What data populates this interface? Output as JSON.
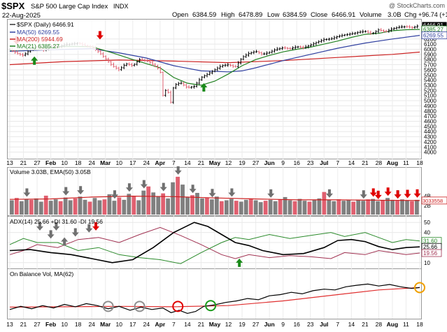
{
  "header": {
    "ticker": "$SPX",
    "name": "S&P 500 Large Cap Index",
    "exchange": "INDX",
    "date": "22-Aug-2025",
    "source": "@ StockCharts.com",
    "quote": {
      "open_label": "Open",
      "open": "6384.59",
      "high_label": "High",
      "high": "6478.89",
      "low_label": "Low",
      "low": "6384.59",
      "close_label": "Close",
      "close": "6466.91",
      "volume_label": "Volume",
      "volume": "3.0B",
      "chg_label": "Chg",
      "chg": "+96.74 (+1.52%)"
    }
  },
  "colors": {
    "price": "#000000",
    "ma50": "#3040a0",
    "ma200": "#cc2020",
    "ma21": "#208020",
    "up_vol": "#808080",
    "down_vol": "#e06070",
    "adx": "#000000",
    "pdi": "#2a8a2a",
    "mdi": "#a03050",
    "obv": "#000000",
    "obv_ma": "#e03030",
    "arrow_gray": "#707070",
    "arrow_red": "#e00000",
    "arrow_green": "#1a8a1a",
    "circle_gray": "#909090",
    "circle_red": "#e00000",
    "circle_green": "#1a9a1a",
    "circle_orange": "#f0a000"
  },
  "chart_data": [
    {
      "type": "line",
      "panel": "price",
      "legend": [
        {
          "text": "$SPX (Daily) 6466.91",
          "key": "price"
        },
        {
          "text": "MA(50) 6269.55",
          "key": "ma50"
        },
        {
          "text": "MA(200) 5944.69",
          "key": "ma200"
        },
        {
          "text": "MA(21) 6385.27",
          "key": "ma21"
        }
      ],
      "ylim": [
        3900,
        6550
      ],
      "y_ticks": [
        4000,
        4100,
        4200,
        4300,
        4400,
        4500,
        4600,
        4700,
        4800,
        4900,
        5000,
        5100,
        5200,
        5300,
        5400,
        5500,
        5600,
        5700,
        5800,
        5900,
        6000,
        6100,
        6200
      ],
      "value_tags": [
        {
          "label": "6466.91",
          "value": 6466.91,
          "style": "close"
        },
        {
          "label": "6385.27",
          "value": 6385.27,
          "style": "ma21"
        },
        {
          "label": "6269.55",
          "value": 6269.55,
          "style": "ma50"
        }
      ],
      "x_dates": [
        "13",
        "21",
        "27",
        "Feb",
        "10",
        "18",
        "24",
        "Mar",
        "10",
        "17",
        "24",
        "Apr",
        "7",
        "14",
        "21",
        "May",
        "12",
        "19",
        "27",
        "Jun",
        "9",
        "16",
        "23",
        "Jul",
        "7",
        "14",
        "21",
        "28",
        "Aug",
        "11",
        "18"
      ],
      "price_points": [
        [
          0,
          6000
        ],
        [
          5,
          5920
        ],
        [
          10,
          5880
        ],
        [
          15,
          5990
        ],
        [
          20,
          6050
        ],
        [
          25,
          5980
        ],
        [
          30,
          6060
        ],
        [
          35,
          6040
        ],
        [
          40,
          6090
        ],
        [
          45,
          6100
        ],
        [
          50,
          6120
        ],
        [
          55,
          6070
        ],
        [
          60,
          6040
        ],
        [
          65,
          5950
        ],
        [
          70,
          5820
        ],
        [
          75,
          5680
        ],
        [
          80,
          5600
        ],
        [
          85,
          5720
        ],
        [
          90,
          5680
        ],
        [
          95,
          5800
        ],
        [
          100,
          5780
        ],
        [
          105,
          5700
        ],
        [
          110,
          5600
        ],
        [
          112,
          5100
        ],
        [
          115,
          5250
        ],
        [
          118,
          4950
        ],
        [
          120,
          5300
        ],
        [
          125,
          5350
        ],
        [
          130,
          5250
        ],
        [
          135,
          5280
        ],
        [
          140,
          5450
        ],
        [
          145,
          5520
        ],
        [
          150,
          5600
        ],
        [
          155,
          5680
        ],
        [
          160,
          5700
        ],
        [
          165,
          5650
        ],
        [
          170,
          5840
        ],
        [
          175,
          5920
        ],
        [
          180,
          5960
        ],
        [
          185,
          5900
        ],
        [
          190,
          5940
        ],
        [
          195,
          6000
        ],
        [
          200,
          6030
        ],
        [
          205,
          6010
        ],
        [
          210,
          6050
        ],
        [
          215,
          6030
        ],
        [
          220,
          6080
        ],
        [
          225,
          6140
        ],
        [
          230,
          6190
        ],
        [
          235,
          6200
        ],
        [
          240,
          6250
        ],
        [
          245,
          6280
        ],
        [
          250,
          6300
        ],
        [
          255,
          6330
        ],
        [
          260,
          6350
        ],
        [
          265,
          6300
        ],
        [
          270,
          6380
        ],
        [
          275,
          6340
        ],
        [
          280,
          6400
        ],
        [
          285,
          6430
        ],
        [
          290,
          6440
        ],
        [
          295,
          6420
        ],
        [
          300,
          6466.91
        ]
      ],
      "ma21_points": [
        [
          0,
          5980
        ],
        [
          20,
          5995
        ],
        [
          40,
          6060
        ],
        [
          60,
          6050
        ],
        [
          75,
          5930
        ],
        [
          90,
          5800
        ],
        [
          100,
          5720
        ],
        [
          110,
          5640
        ],
        [
          120,
          5450
        ],
        [
          130,
          5340
        ],
        [
          140,
          5300
        ],
        [
          150,
          5380
        ],
        [
          160,
          5520
        ],
        [
          170,
          5680
        ],
        [
          180,
          5800
        ],
        [
          190,
          5880
        ],
        [
          200,
          5950
        ],
        [
          210,
          6000
        ],
        [
          220,
          6040
        ],
        [
          230,
          6100
        ],
        [
          240,
          6160
        ],
        [
          250,
          6230
        ],
        [
          260,
          6290
        ],
        [
          270,
          6310
        ],
        [
          280,
          6360
        ],
        [
          290,
          6380
        ],
        [
          300,
          6385.27
        ]
      ],
      "ma50_points": [
        [
          0,
          5960
        ],
        [
          30,
          5990
        ],
        [
          60,
          6010
        ],
        [
          80,
          5930
        ],
        [
          100,
          5830
        ],
        [
          120,
          5680
        ],
        [
          140,
          5580
        ],
        [
          160,
          5560
        ],
        [
          170,
          5580
        ],
        [
          180,
          5640
        ],
        [
          200,
          5780
        ],
        [
          220,
          5900
        ],
        [
          240,
          6020
        ],
        [
          260,
          6120
        ],
        [
          280,
          6200
        ],
        [
          300,
          6269.55
        ]
      ],
      "ma200_points": [
        [
          0,
          5700
        ],
        [
          40,
          5760
        ],
        [
          80,
          5790
        ],
        [
          120,
          5770
        ],
        [
          160,
          5740
        ],
        [
          200,
          5780
        ],
        [
          240,
          5840
        ],
        [
          280,
          5900
        ],
        [
          300,
          5944.69
        ]
      ],
      "arrows": [
        {
          "x": 5,
          "value": 6130,
          "dir": "down",
          "color": "red"
        },
        {
          "x": 18,
          "value": 5820,
          "dir": "up",
          "color": "green"
        },
        {
          "x": 66,
          "value": 6230,
          "dir": "down",
          "color": "red"
        },
        {
          "x": 142,
          "value": 5300,
          "dir": "up",
          "color": "green"
        }
      ]
    },
    {
      "type": "bar",
      "panel": "volume",
      "legend": "Volume 3.03B, EMA(50) 3.05B",
      "y_ticks_labels": [
        "4B",
        "3B",
        "2B"
      ],
      "y_ticks": [
        4,
        3,
        2
      ],
      "ylim": [
        0,
        10
      ],
      "value_tag": "3033558",
      "volumes": [
        3.1,
        3.6,
        2.9,
        3.4,
        3.2,
        3.5,
        2.8,
        4.1,
        3.0,
        3.3,
        2.9,
        3.7,
        3.1,
        3.5,
        3.9,
        3.2,
        2.8,
        3.6,
        3.1,
        3.3,
        4.4,
        3.0,
        3.7,
        3.2,
        4.5,
        3.9,
        3.1,
        5.2,
        6.1,
        4.8,
        3.9,
        4.6,
        3.5,
        7.0,
        8.2,
        6.5,
        3.8,
        4.2,
        4.7,
        3.5,
        3.6,
        3.3,
        3.9,
        2.9,
        3.1,
        3.4,
        3.0,
        2.8,
        3.2,
        3.5,
        3.1,
        2.7,
        3.0,
        3.2,
        2.9,
        3.3,
        3.8,
        3.1,
        2.9,
        3.4,
        3.0,
        2.8,
        3.1,
        3.5,
        4.9,
        3.2,
        2.9,
        3.3,
        3.0,
        3.2,
        2.8,
        3.1,
        3.0,
        3.3,
        3.4,
        2.9,
        3.1,
        3.6,
        3.2,
        3.0,
        3.3,
        3.1,
        2.9,
        3.2
      ],
      "ema_points": [
        [
          0,
          3.3
        ],
        [
          30,
          3.4
        ],
        [
          60,
          3.8
        ],
        [
          90,
          4.0
        ],
        [
          120,
          3.9
        ],
        [
          150,
          3.6
        ],
        [
          180,
          3.4
        ],
        [
          210,
          3.2
        ],
        [
          240,
          3.2
        ],
        [
          270,
          3.1
        ],
        [
          300,
          3.05
        ]
      ],
      "arrows_gray": [
        3,
        11,
        14,
        21,
        24,
        27,
        31,
        34,
        37,
        41,
        45,
        53,
        65,
        72,
        79,
        92,
        101
      ],
      "arrows_red": [
        74,
        75,
        77,
        79,
        81,
        83
      ]
    },
    {
      "type": "line",
      "panel": "adx",
      "legend": "ADX(14) 25.66 +DI 31.60 -DI 19.56",
      "y_ticks": [
        10,
        20,
        30,
        40,
        50
      ],
      "ylim": [
        5,
        55
      ],
      "value_tags": [
        {
          "label": "31.60",
          "value": 31.6,
          "style": "pdi"
        },
        {
          "label": "25.66",
          "value": 25.66,
          "style": "adx"
        },
        {
          "label": "19.56",
          "value": 19.56,
          "style": "mdi"
        }
      ],
      "adx_points": [
        [
          0,
          22
        ],
        [
          15,
          23
        ],
        [
          30,
          20
        ],
        [
          45,
          18
        ],
        [
          60,
          14
        ],
        [
          75,
          10
        ],
        [
          90,
          13
        ],
        [
          105,
          25
        ],
        [
          120,
          40
        ],
        [
          135,
          50
        ],
        [
          145,
          46
        ],
        [
          155,
          38
        ],
        [
          165,
          30
        ],
        [
          175,
          27
        ],
        [
          185,
          22
        ],
        [
          200,
          18
        ],
        [
          215,
          19
        ],
        [
          230,
          25
        ],
        [
          240,
          32
        ],
        [
          250,
          33
        ],
        [
          260,
          31
        ],
        [
          270,
          26
        ],
        [
          280,
          23
        ],
        [
          290,
          25
        ],
        [
          300,
          25.66
        ]
      ],
      "pdi_points": [
        [
          0,
          28
        ],
        [
          10,
          34
        ],
        [
          20,
          30
        ],
        [
          35,
          30
        ],
        [
          50,
          22
        ],
        [
          65,
          25
        ],
        [
          80,
          18
        ],
        [
          95,
          15
        ],
        [
          110,
          13
        ],
        [
          125,
          9
        ],
        [
          140,
          20
        ],
        [
          155,
          30
        ],
        [
          165,
          35
        ],
        [
          175,
          33
        ],
        [
          190,
          38
        ],
        [
          205,
          34
        ],
        [
          220,
          37
        ],
        [
          235,
          40
        ],
        [
          245,
          36
        ],
        [
          260,
          40
        ],
        [
          270,
          35
        ],
        [
          280,
          30
        ],
        [
          290,
          33
        ],
        [
          300,
          31.6
        ]
      ],
      "mdi_points": [
        [
          0,
          18
        ],
        [
          10,
          22
        ],
        [
          20,
          28
        ],
        [
          35,
          25
        ],
        [
          50,
          33
        ],
        [
          65,
          35
        ],
        [
          80,
          30
        ],
        [
          95,
          38
        ],
        [
          110,
          45
        ],
        [
          125,
          37
        ],
        [
          140,
          28
        ],
        [
          155,
          18
        ],
        [
          165,
          14
        ],
        [
          175,
          18
        ],
        [
          190,
          15
        ],
        [
          205,
          17
        ],
        [
          220,
          16
        ],
        [
          235,
          14
        ],
        [
          245,
          20
        ],
        [
          260,
          18
        ],
        [
          270,
          22
        ],
        [
          280,
          20
        ],
        [
          290,
          18
        ],
        [
          300,
          19.56
        ]
      ],
      "arrows": [
        {
          "x": 22,
          "value": 44,
          "dir": "down",
          "color": "gray"
        },
        {
          "x": 34,
          "value": 44,
          "dir": "down",
          "color": "gray"
        },
        {
          "x": 30,
          "value": 36,
          "dir": "down",
          "color": "gray"
        },
        {
          "x": 40,
          "value": 33,
          "dir": "up",
          "color": "gray"
        },
        {
          "x": 48,
          "value": 38,
          "dir": "down",
          "color": "gray"
        },
        {
          "x": 58,
          "value": 42,
          "dir": "down",
          "color": "gray"
        },
        {
          "x": 63,
          "value": 44,
          "dir": "down",
          "color": "red"
        },
        {
          "x": 168,
          "value": 12,
          "dir": "up",
          "color": "green"
        }
      ]
    },
    {
      "type": "line",
      "panel": "obv",
      "legend": "On Balance Vol, MA(62)",
      "obv_points": [
        [
          0,
          20
        ],
        [
          8,
          28
        ],
        [
          16,
          22
        ],
        [
          24,
          30
        ],
        [
          32,
          24
        ],
        [
          40,
          33
        ],
        [
          48,
          27
        ],
        [
          56,
          35
        ],
        [
          64,
          30
        ],
        [
          72,
          22
        ],
        [
          80,
          28
        ],
        [
          88,
          18
        ],
        [
          96,
          26
        ],
        [
          104,
          20
        ],
        [
          112,
          24
        ],
        [
          118,
          12
        ],
        [
          124,
          18
        ],
        [
          130,
          10
        ],
        [
          136,
          15
        ],
        [
          142,
          28
        ],
        [
          150,
          32
        ],
        [
          158,
          38
        ],
        [
          166,
          42
        ],
        [
          174,
          48
        ],
        [
          182,
          45
        ],
        [
          190,
          55
        ],
        [
          198,
          58
        ],
        [
          206,
          64
        ],
        [
          214,
          60
        ],
        [
          222,
          68
        ],
        [
          230,
          72
        ],
        [
          238,
          70
        ],
        [
          246,
          78
        ],
        [
          254,
          82
        ],
        [
          262,
          85
        ],
        [
          270,
          80
        ],
        [
          278,
          84
        ],
        [
          286,
          78
        ],
        [
          294,
          74
        ],
        [
          300,
          76
        ]
      ],
      "obv_ma_points": [
        [
          0,
          26
        ],
        [
          40,
          27
        ],
        [
          80,
          28
        ],
        [
          120,
          27
        ],
        [
          160,
          30
        ],
        [
          200,
          42
        ],
        [
          240,
          58
        ],
        [
          270,
          70
        ],
        [
          300,
          76
        ]
      ],
      "ylim": [
        0,
        100
      ],
      "circles": [
        {
          "x": 72,
          "value": 28,
          "color": "gray"
        },
        {
          "x": 95,
          "value": 28,
          "color": "gray"
        },
        {
          "x": 123,
          "value": 28,
          "color": "red"
        },
        {
          "x": 147,
          "value": 30,
          "color": "green"
        },
        {
          "x": 300,
          "value": 76,
          "color": "orange"
        }
      ]
    }
  ]
}
